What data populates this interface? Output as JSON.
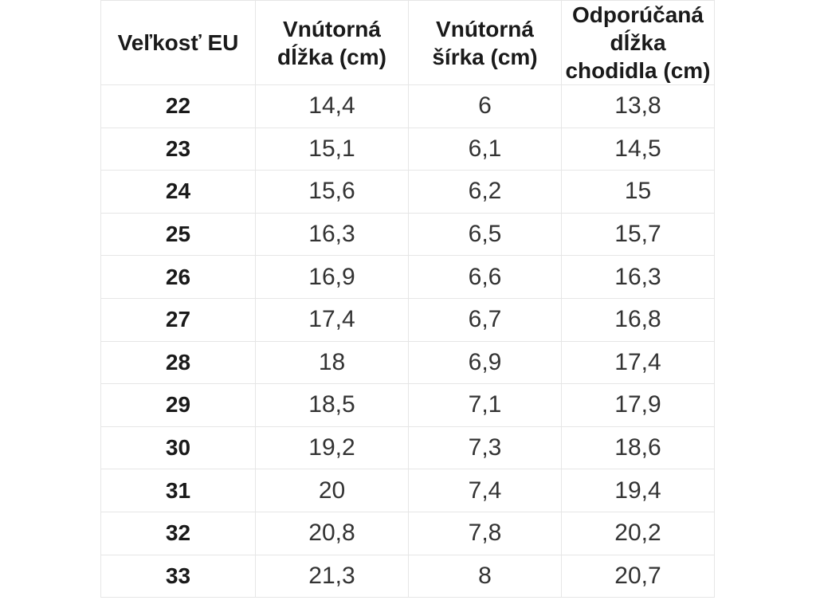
{
  "colors": {
    "background": "#ffffff",
    "cell_background": "#ffffff",
    "border": "#e6e6e6",
    "header_text": "#1a1a1a",
    "value_text": "#333333"
  },
  "chart_data": {
    "type": "table",
    "title": "",
    "decimal_separator": ",",
    "columns": [
      "Veľkosť EU",
      "Vnútorná dĺžka (cm)",
      "Vnútorná šírka (cm)",
      "Odporúčaná dĺžka chodidla (cm)"
    ],
    "columns_meta": [
      {
        "id": "size_eu",
        "label": "Veľkosť EU",
        "label_lines": [
          "Veľkosť EU"
        ]
      },
      {
        "id": "inner_length_cm",
        "label": "Vnútorná dĺžka (cm)",
        "label_lines": [
          "Vnútorná",
          "dĺžka (cm)"
        ]
      },
      {
        "id": "inner_width_cm",
        "label": "Vnútorná šírka (cm)",
        "label_lines": [
          "Vnútorná",
          "šírka (cm)"
        ]
      },
      {
        "id": "recommended_foot_length_cm",
        "label": "Odporúčaná dĺžka chodidla (cm)",
        "label_lines": [
          "Odporúčaná",
          "dĺžka",
          "chodidla (cm)"
        ]
      }
    ],
    "rows": [
      [
        22,
        14.4,
        6,
        13.8
      ],
      [
        23,
        15.1,
        6.1,
        14.5
      ],
      [
        24,
        15.6,
        6.2,
        15
      ],
      [
        25,
        16.3,
        6.5,
        15.7
      ],
      [
        26,
        16.9,
        6.6,
        16.3
      ],
      [
        27,
        17.4,
        6.7,
        16.8
      ],
      [
        28,
        18,
        6.9,
        17.4
      ],
      [
        29,
        18.5,
        7.1,
        17.9
      ],
      [
        30,
        19.2,
        7.3,
        18.6
      ],
      [
        31,
        20,
        7.4,
        19.4
      ],
      [
        32,
        20.8,
        7.8,
        20.2
      ],
      [
        33,
        21.3,
        8,
        20.7
      ]
    ],
    "rows_display": [
      [
        "22",
        "14,4",
        "6",
        "13,8"
      ],
      [
        "23",
        "15,1",
        "6,1",
        "14,5"
      ],
      [
        "24",
        "15,6",
        "6,2",
        "15"
      ],
      [
        "25",
        "16,3",
        "6,5",
        "15,7"
      ],
      [
        "26",
        "16,9",
        "6,6",
        "16,3"
      ],
      [
        "27",
        "17,4",
        "6,7",
        "16,8"
      ],
      [
        "28",
        "18",
        "6,9",
        "17,4"
      ],
      [
        "29",
        "18,5",
        "7,1",
        "17,9"
      ],
      [
        "30",
        "19,2",
        "7,3",
        "18,6"
      ],
      [
        "31",
        "20",
        "7,4",
        "19,4"
      ],
      [
        "32",
        "20,8",
        "7,8",
        "20,2"
      ],
      [
        "33",
        "21,3",
        "8",
        "20,7"
      ]
    ]
  }
}
